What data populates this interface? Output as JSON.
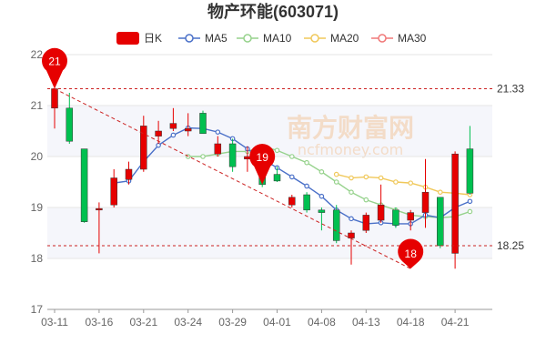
{
  "chart_data": {
    "type": "candlestick",
    "title": "物产环能(603071)",
    "legend": [
      {
        "name": "日K",
        "color": "#e60000"
      },
      {
        "name": "MA5",
        "color": "#4a70c8"
      },
      {
        "name": "MA10",
        "color": "#96d28c"
      },
      {
        "name": "MA20",
        "color": "#f0c85a"
      },
      {
        "name": "MA30",
        "color": "#f07878"
      }
    ],
    "ylim": [
      17,
      22
    ],
    "yticks": [
      17,
      18,
      19,
      20,
      21,
      22
    ],
    "x_labels": [
      {
        "index": 0,
        "label": "03-11"
      },
      {
        "index": 3,
        "label": "03-16"
      },
      {
        "index": 6,
        "label": "03-21"
      },
      {
        "index": 9,
        "label": "03-24"
      },
      {
        "index": 12,
        "label": "03-29"
      },
      {
        "index": 15,
        "label": "04-01"
      },
      {
        "index": 18,
        "label": "04-08"
      },
      {
        "index": 21,
        "label": "04-13"
      },
      {
        "index": 24,
        "label": "04-18"
      },
      {
        "index": 27,
        "label": "04-21"
      }
    ],
    "candles": [
      {
        "o": 20.95,
        "h": 21.35,
        "l": 20.55,
        "c": 21.33
      },
      {
        "o": 20.95,
        "h": 21.25,
        "l": 20.25,
        "c": 20.3
      },
      {
        "o": 20.15,
        "h": 20.15,
        "l": 18.7,
        "c": 18.72
      },
      {
        "o": 18.95,
        "h": 19.1,
        "l": 18.1,
        "c": 18.98
      },
      {
        "o": 19.05,
        "h": 19.75,
        "l": 19.0,
        "c": 19.58
      },
      {
        "o": 19.55,
        "h": 19.9,
        "l": 19.45,
        "c": 19.75
      },
      {
        "o": 19.75,
        "h": 20.8,
        "l": 19.7,
        "c": 20.6
      },
      {
        "o": 20.4,
        "h": 20.7,
        "l": 20.25,
        "c": 20.5
      },
      {
        "o": 20.55,
        "h": 20.95,
        "l": 20.5,
        "c": 20.65
      },
      {
        "o": 20.5,
        "h": 20.85,
        "l": 20.4,
        "c": 20.55
      },
      {
        "o": 20.85,
        "h": 20.9,
        "l": 20.45,
        "c": 20.45
      },
      {
        "o": 20.05,
        "h": 20.4,
        "l": 20.0,
        "c": 20.25
      },
      {
        "o": 20.25,
        "h": 20.35,
        "l": 19.7,
        "c": 19.8
      },
      {
        "o": 19.95,
        "h": 20.2,
        "l": 19.7,
        "c": 20.0
      },
      {
        "o": 19.75,
        "h": 19.85,
        "l": 19.4,
        "c": 19.45
      },
      {
        "o": 19.65,
        "h": 19.8,
        "l": 19.5,
        "c": 19.52
      },
      {
        "o": 19.05,
        "h": 19.25,
        "l": 19.0,
        "c": 19.2
      },
      {
        "o": 19.25,
        "h": 19.3,
        "l": 18.9,
        "c": 18.95
      },
      {
        "o": 18.95,
        "h": 19.0,
        "l": 18.55,
        "c": 18.9
      },
      {
        "o": 18.95,
        "h": 19.05,
        "l": 18.3,
        "c": 18.35
      },
      {
        "o": 18.4,
        "h": 18.55,
        "l": 17.88,
        "c": 18.5
      },
      {
        "o": 18.55,
        "h": 18.9,
        "l": 18.5,
        "c": 18.85
      },
      {
        "o": 18.75,
        "h": 19.45,
        "l": 18.7,
        "c": 19.05
      },
      {
        "o": 18.95,
        "h": 19.0,
        "l": 18.6,
        "c": 18.65
      },
      {
        "o": 18.75,
        "h": 18.95,
        "l": 18.55,
        "c": 18.9
      },
      {
        "o": 18.9,
        "h": 19.95,
        "l": 18.6,
        "c": 19.3
      },
      {
        "o": 19.2,
        "h": 19.2,
        "l": 18.2,
        "c": 18.25
      },
      {
        "o": 18.1,
        "h": 20.1,
        "l": 17.8,
        "c": 20.05
      },
      {
        "o": 20.15,
        "h": 20.6,
        "l": 19.25,
        "c": 19.28
      }
    ],
    "ma": {
      "MA5": [
        null,
        null,
        null,
        null,
        19.48,
        19.52,
        19.9,
        20.22,
        20.42,
        20.56,
        20.55,
        20.48,
        20.35,
        20.15,
        19.95,
        19.78,
        19.6,
        19.42,
        19.22,
        18.95,
        18.78,
        18.68,
        18.7,
        18.68,
        18.68,
        18.85,
        18.8,
        19.0,
        19.12
      ],
      "MA10": [
        null,
        null,
        null,
        null,
        null,
        null,
        null,
        null,
        null,
        20.0,
        20.0,
        20.05,
        20.1,
        20.1,
        20.2,
        20.12,
        20.0,
        19.88,
        19.7,
        19.5,
        19.3,
        19.15,
        19.05,
        18.95,
        18.85,
        18.82,
        18.8,
        18.82,
        18.92
      ],
      "MA20": [
        null,
        null,
        null,
        null,
        null,
        null,
        null,
        null,
        null,
        null,
        null,
        null,
        null,
        null,
        null,
        null,
        null,
        null,
        null,
        19.65,
        19.58,
        19.6,
        19.58,
        19.5,
        19.48,
        19.4,
        19.3,
        19.28,
        19.25
      ]
    },
    "reference_lines": [
      {
        "value": 21.33,
        "label": "21.33"
      },
      {
        "value": 18.25,
        "label": "18.25"
      }
    ],
    "markers": [
      {
        "index": 0,
        "value": 21.33,
        "label": "21"
      },
      {
        "index": 14,
        "value": 19.45,
        "label": "19"
      },
      {
        "index": 24,
        "value": 17.8,
        "label": "18"
      }
    ],
    "trend_line": {
      "from": {
        "index": 0,
        "value": 21.33
      },
      "to": {
        "index": 24,
        "value": 17.8
      }
    }
  },
  "watermark": {
    "text": "南方财富网",
    "subtext": "ncfmoney.com"
  }
}
